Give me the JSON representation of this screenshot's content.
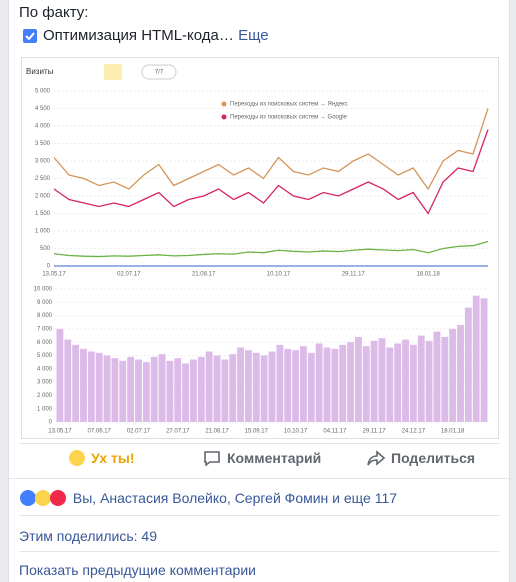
{
  "post": {
    "heading": "По факту:",
    "item": "Оптимизация HTML-кода…",
    "more": "Еще",
    "actions": [
      "Ух ты!",
      "Комментарий",
      "Поделиться"
    ],
    "reactions": "Вы, Анастасия Волейко, Сергей Фомин и еще 117",
    "shares": "Этим поделились: 49",
    "show_comments": "Показать предыдущие комментарии"
  },
  "chart_data": [
    {
      "type": "line",
      "title": "Визиты",
      "counter": "7/7",
      "categories": [
        "13.05.17",
        null,
        null,
        null,
        null,
        "02.07.17",
        null,
        null,
        null,
        null,
        "21.08.17",
        null,
        null,
        null,
        null,
        "10.10.17",
        null,
        null,
        null,
        null,
        "29.11.17",
        null,
        null,
        null,
        null,
        "18.01.18",
        null,
        null,
        null,
        null
      ],
      "series": [
        {
          "name": "Переходы из поисковых систем → Яндекс",
          "color": "#d4955a",
          "values": [
            3100,
            2600,
            2500,
            2300,
            2400,
            2200,
            2600,
            2900,
            2300,
            2500,
            2700,
            2900,
            2600,
            2800,
            2500,
            3100,
            2700,
            2600,
            2800,
            2700,
            3000,
            3200,
            2900,
            2600,
            2800,
            2200,
            3000,
            3300,
            3200,
            4500
          ]
        },
        {
          "name": "Переходы из поисковых систем → Google",
          "color": "#d6245e",
          "values": [
            2200,
            1900,
            1800,
            1700,
            1800,
            1700,
            1900,
            2100,
            1700,
            1900,
            2000,
            2200,
            1900,
            2100,
            1800,
            2300,
            2000,
            1900,
            2100,
            2000,
            2200,
            2400,
            2200,
            1900,
            2100,
            1500,
            2400,
            2800,
            2700,
            3900
          ]
        },
        {
          "color": "#6ab344",
          "values": [
            350,
            300,
            280,
            270,
            290,
            280,
            300,
            320,
            290,
            300,
            330,
            350,
            340,
            400,
            380,
            450,
            420,
            400,
            430,
            410,
            450,
            480,
            460,
            440,
            470,
            380,
            500,
            560,
            580,
            700
          ]
        }
      ],
      "ylim": [
        0,
        5000
      ],
      "yticks": [
        0,
        500,
        {
          "value": 1000,
          "label": "1 000"
        },
        {
          "value": 1500,
          "label": "1 500"
        },
        {
          "value": 2000,
          "label": "2 000"
        },
        {
          "value": 2500,
          "label": "2 500"
        },
        {
          "value": 3000,
          "label": "3 000"
        },
        {
          "value": 3500,
          "label": "3 500"
        },
        {
          "value": 4000,
          "label": "4 000"
        },
        {
          "value": 4500,
          "label": "4 500"
        },
        {
          "value": 5000,
          "label": "5 000"
        }
      ],
      "grid": true
    },
    {
      "type": "bar",
      "color": "#dcbbe8",
      "categories": [
        "13.05.17",
        null,
        null,
        null,
        null,
        "07.06.17",
        null,
        null,
        null,
        null,
        "02.07.17",
        null,
        null,
        null,
        null,
        "27.07.17",
        null,
        null,
        null,
        null,
        "21.08.17",
        null,
        null,
        null,
        null,
        "15.09.17",
        null,
        null,
        null,
        null,
        "10.10.17",
        null,
        null,
        null,
        null,
        "04.11.17",
        null,
        null,
        null,
        null,
        "29.11.17",
        null,
        null,
        null,
        null,
        "24.12.17",
        null,
        null,
        null,
        null,
        "18.01.18",
        null,
        null,
        null,
        null
      ],
      "values": [
        7000,
        6200,
        5800,
        5500,
        5300,
        5200,
        5000,
        4800,
        4600,
        4900,
        4700,
        4500,
        4900,
        5100,
        4600,
        4800,
        4400,
        4700,
        4900,
        5300,
        5000,
        4700,
        5100,
        5600,
        5400,
        5200,
        5000,
        5300,
        5800,
        5500,
        5400,
        5700,
        5200,
        5900,
        5600,
        5500,
        5800,
        6000,
        6400,
        5700,
        6100,
        6300,
        5600,
        5900,
        6200,
        5800,
        6500,
        6100,
        6800,
        6400,
        7000,
        7300,
        8600,
        9500,
        9300
      ],
      "ylim": [
        0,
        10000
      ],
      "yticks": [
        0,
        {
          "value": 1000,
          "label": "1 000"
        },
        {
          "value": 2000,
          "label": "2 000"
        },
        {
          "value": 3000,
          "label": "3 000"
        },
        {
          "value": 4000,
          "label": "4 000"
        },
        {
          "value": 5000,
          "label": "5 000"
        },
        {
          "value": 6000,
          "label": "6 000"
        },
        {
          "value": 7000,
          "label": "7 000"
        },
        {
          "value": 8000,
          "label": "8 000"
        },
        {
          "value": 9000,
          "label": "9 000"
        },
        {
          "value": 10000,
          "label": "10 000"
        }
      ],
      "grid": true
    }
  ]
}
